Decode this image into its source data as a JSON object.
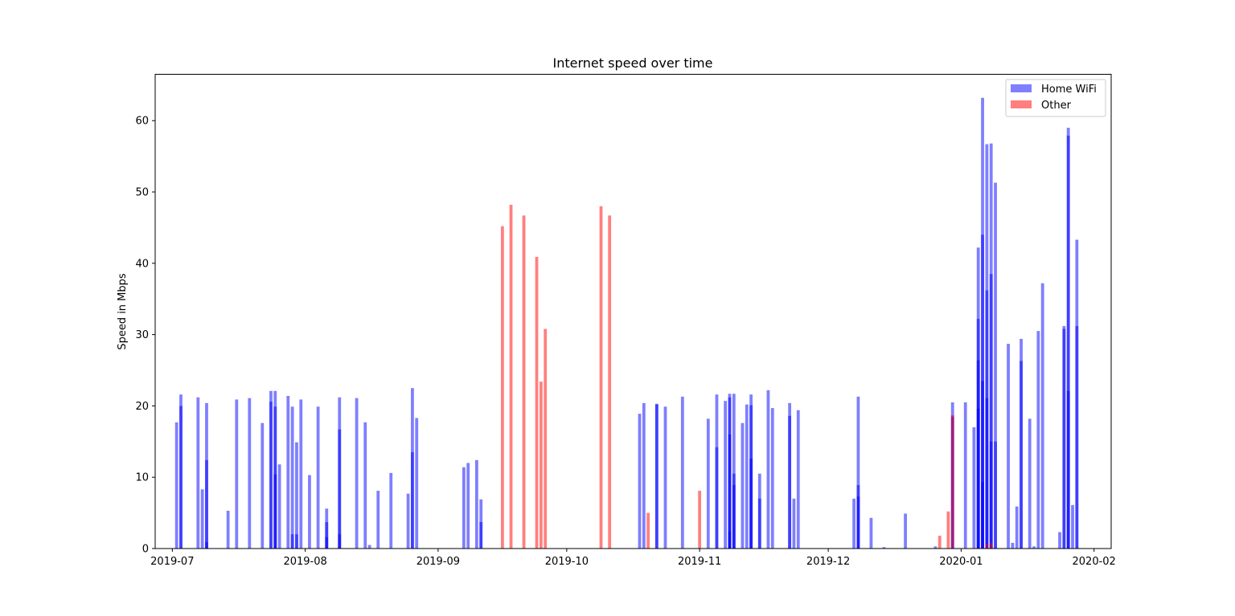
{
  "chart_data": {
    "type": "bar",
    "title": "Internet speed over time",
    "xlabel": "",
    "ylabel": "Speed in Mbps",
    "xlim": [
      "2019-06-27",
      "2020-02-05"
    ],
    "ylim": [
      0,
      66.5
    ],
    "y_ticks": [
      0,
      10,
      20,
      30,
      40,
      50,
      60
    ],
    "x_ticks": [
      "2019-07-01",
      "2019-08-01",
      "2019-09-01",
      "2019-10-01",
      "2019-11-01",
      "2019-12-01",
      "2020-01-01",
      "2020-02-01"
    ],
    "x_tick_labels": [
      "2019-07",
      "2019-08",
      "2019-09",
      "2019-10",
      "2019-11",
      "2019-12",
      "2020-01",
      "2020-02"
    ],
    "legend_position": "top-right",
    "grid": false,
    "series": [
      {
        "name": "Home WiFi",
        "color": "#0000ff",
        "opacity": 0.5,
        "points": [
          [
            "2019-07-02",
            17.7
          ],
          [
            "2019-07-03",
            20.0
          ],
          [
            "2019-07-03",
            21.6
          ],
          [
            "2019-07-07",
            21.2
          ],
          [
            "2019-07-08",
            8.3
          ],
          [
            "2019-07-09",
            20.4
          ],
          [
            "2019-07-09",
            12.4
          ],
          [
            "2019-07-09",
            0.9
          ],
          [
            "2019-07-14",
            5.3
          ],
          [
            "2019-07-16",
            20.9
          ],
          [
            "2019-07-19",
            21.1
          ],
          [
            "2019-07-22",
            17.6
          ],
          [
            "2019-07-24",
            22.1
          ],
          [
            "2019-07-24",
            20.6
          ],
          [
            "2019-07-25",
            22.1
          ],
          [
            "2019-07-25",
            19.9
          ],
          [
            "2019-07-25",
            10.4
          ],
          [
            "2019-07-26",
            11.8
          ],
          [
            "2019-07-28",
            21.4
          ],
          [
            "2019-07-29",
            19.9
          ],
          [
            "2019-07-29",
            2.0
          ],
          [
            "2019-07-30",
            14.9
          ],
          [
            "2019-07-30",
            2.0
          ],
          [
            "2019-07-31",
            20.9
          ],
          [
            "2019-08-02",
            10.3
          ],
          [
            "2019-08-04",
            19.9
          ],
          [
            "2019-08-06",
            5.6
          ],
          [
            "2019-08-06",
            3.7
          ],
          [
            "2019-08-06",
            1.6
          ],
          [
            "2019-08-09",
            21.2
          ],
          [
            "2019-08-09",
            16.7
          ],
          [
            "2019-08-09",
            2.0
          ],
          [
            "2019-08-13",
            21.1
          ],
          [
            "2019-08-15",
            17.7
          ],
          [
            "2019-08-16",
            0.5
          ],
          [
            "2019-08-18",
            8.1
          ],
          [
            "2019-08-21",
            10.6
          ],
          [
            "2019-08-25",
            7.7
          ],
          [
            "2019-08-26",
            22.5
          ],
          [
            "2019-08-26",
            13.5
          ],
          [
            "2019-08-27",
            18.3
          ],
          [
            "2019-09-07",
            11.4
          ],
          [
            "2019-09-08",
            12.0
          ],
          [
            "2019-09-10",
            12.4
          ],
          [
            "2019-09-11",
            6.9
          ],
          [
            "2019-09-11",
            3.7
          ],
          [
            "2019-10-18",
            18.9
          ],
          [
            "2019-10-19",
            20.4
          ],
          [
            "2019-10-22",
            20.3
          ],
          [
            "2019-10-22",
            20.2
          ],
          [
            "2019-10-24",
            19.9
          ],
          [
            "2019-10-28",
            21.3
          ],
          [
            "2019-11-03",
            18.2
          ],
          [
            "2019-11-05",
            21.6
          ],
          [
            "2019-11-05",
            14.2
          ],
          [
            "2019-11-07",
            20.7
          ],
          [
            "2019-11-08",
            21.7
          ],
          [
            "2019-11-08",
            21.2
          ],
          [
            "2019-11-08",
            16.0
          ],
          [
            "2019-11-08",
            2.4
          ],
          [
            "2019-11-09",
            21.7
          ],
          [
            "2019-11-09",
            10.5
          ],
          [
            "2019-11-09",
            8.9
          ],
          [
            "2019-11-11",
            17.6
          ],
          [
            "2019-11-12",
            20.2
          ],
          [
            "2019-11-13",
            21.6
          ],
          [
            "2019-11-13",
            20.1
          ],
          [
            "2019-11-13",
            12.6
          ],
          [
            "2019-11-15",
            10.5
          ],
          [
            "2019-11-15",
            7.0
          ],
          [
            "2019-11-17",
            22.2
          ],
          [
            "2019-11-18",
            19.7
          ],
          [
            "2019-11-22",
            20.4
          ],
          [
            "2019-11-22",
            18.6
          ],
          [
            "2019-11-23",
            7.0
          ],
          [
            "2019-11-24",
            19.4
          ],
          [
            "2019-12-07",
            7.0
          ],
          [
            "2019-12-08",
            21.3
          ],
          [
            "2019-12-08",
            8.9
          ],
          [
            "2019-12-08",
            7.3
          ],
          [
            "2019-12-11",
            4.3
          ],
          [
            "2019-12-14",
            0.2
          ],
          [
            "2019-12-19",
            4.9
          ],
          [
            "2019-12-26",
            0.3
          ],
          [
            "2019-12-30",
            20.5
          ],
          [
            "2019-12-30",
            18.5
          ],
          [
            "2020-01-02",
            20.5
          ],
          [
            "2020-01-04",
            17.0
          ],
          [
            "2020-01-05",
            42.2
          ],
          [
            "2020-01-05",
            32.2
          ],
          [
            "2020-01-05",
            26.4
          ],
          [
            "2020-01-05",
            19.6
          ],
          [
            "2020-01-06",
            63.2
          ],
          [
            "2020-01-06",
            44.0
          ],
          [
            "2020-01-06",
            23.5
          ],
          [
            "2020-01-06",
            9.3
          ],
          [
            "2020-01-07",
            56.7
          ],
          [
            "2020-01-07",
            36.2
          ],
          [
            "2020-01-07",
            21.1
          ],
          [
            "2020-01-08",
            56.8
          ],
          [
            "2020-01-08",
            38.5
          ],
          [
            "2020-01-08",
            15.0
          ],
          [
            "2020-01-09",
            51.3
          ],
          [
            "2020-01-09",
            15.0
          ],
          [
            "2020-01-12",
            28.7
          ],
          [
            "2020-01-13",
            0.8
          ],
          [
            "2020-01-14",
            5.9
          ],
          [
            "2020-01-15",
            29.4
          ],
          [
            "2020-01-15",
            26.3
          ],
          [
            "2020-01-17",
            18.2
          ],
          [
            "2020-01-18",
            0.3
          ],
          [
            "2020-01-19",
            30.5
          ],
          [
            "2020-01-20",
            37.2
          ],
          [
            "2020-01-24",
            2.3
          ],
          [
            "2020-01-25",
            31.2
          ],
          [
            "2020-01-25",
            30.8
          ],
          [
            "2020-01-26",
            59.0
          ],
          [
            "2020-01-26",
            57.9
          ],
          [
            "2020-01-26",
            22.1
          ],
          [
            "2020-01-27",
            6.1
          ],
          [
            "2020-01-28",
            43.3
          ],
          [
            "2020-01-28",
            31.2
          ]
        ]
      },
      {
        "name": "Other",
        "color": "#ff0000",
        "opacity": 0.5,
        "points": [
          [
            "2019-09-16",
            45.2
          ],
          [
            "2019-09-18",
            48.2
          ],
          [
            "2019-09-21",
            46.7
          ],
          [
            "2019-09-24",
            40.9
          ],
          [
            "2019-09-25",
            23.4
          ],
          [
            "2019-09-26",
            30.8
          ],
          [
            "2019-10-09",
            48.0
          ],
          [
            "2019-10-11",
            46.7
          ],
          [
            "2019-10-20",
            5.0
          ],
          [
            "2019-11-01",
            8.1
          ],
          [
            "2019-12-27",
            1.8
          ],
          [
            "2019-12-29",
            5.2
          ],
          [
            "2019-12-30",
            18.7
          ],
          [
            "2020-01-07",
            0.6
          ],
          [
            "2020-01-08",
            0.8
          ]
        ]
      }
    ]
  }
}
